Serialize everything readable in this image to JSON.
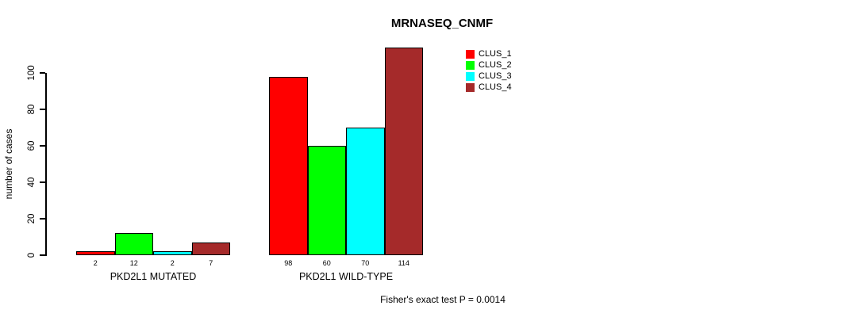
{
  "chart_data": {
    "type": "bar",
    "title": "MRNASEQ_CNMF",
    "xlabel": "",
    "ylabel": "number of cases",
    "ylim": [
      0,
      115
    ],
    "yticks": [
      0,
      20,
      40,
      60,
      80,
      100
    ],
    "grid": false,
    "legend_position": "top-right",
    "categories": [
      "PKD2L1 MUTATED",
      "PKD2L1 WILD-TYPE"
    ],
    "series": [
      {
        "name": "CLUS_1",
        "color": "#ff0000",
        "values": [
          2,
          98
        ]
      },
      {
        "name": "CLUS_2",
        "color": "#00ff00",
        "values": [
          12,
          60
        ]
      },
      {
        "name": "CLUS_3",
        "color": "#00ffff",
        "values": [
          2,
          70
        ]
      },
      {
        "name": "CLUS_4",
        "color": "#a52a2a",
        "values": [
          7,
          114
        ]
      }
    ],
    "bar_value_labels": [
      [
        2,
        12,
        2,
        7
      ],
      [
        98,
        60,
        70,
        114
      ]
    ],
    "annotation": "Fisher's exact test P = 0.0014"
  }
}
